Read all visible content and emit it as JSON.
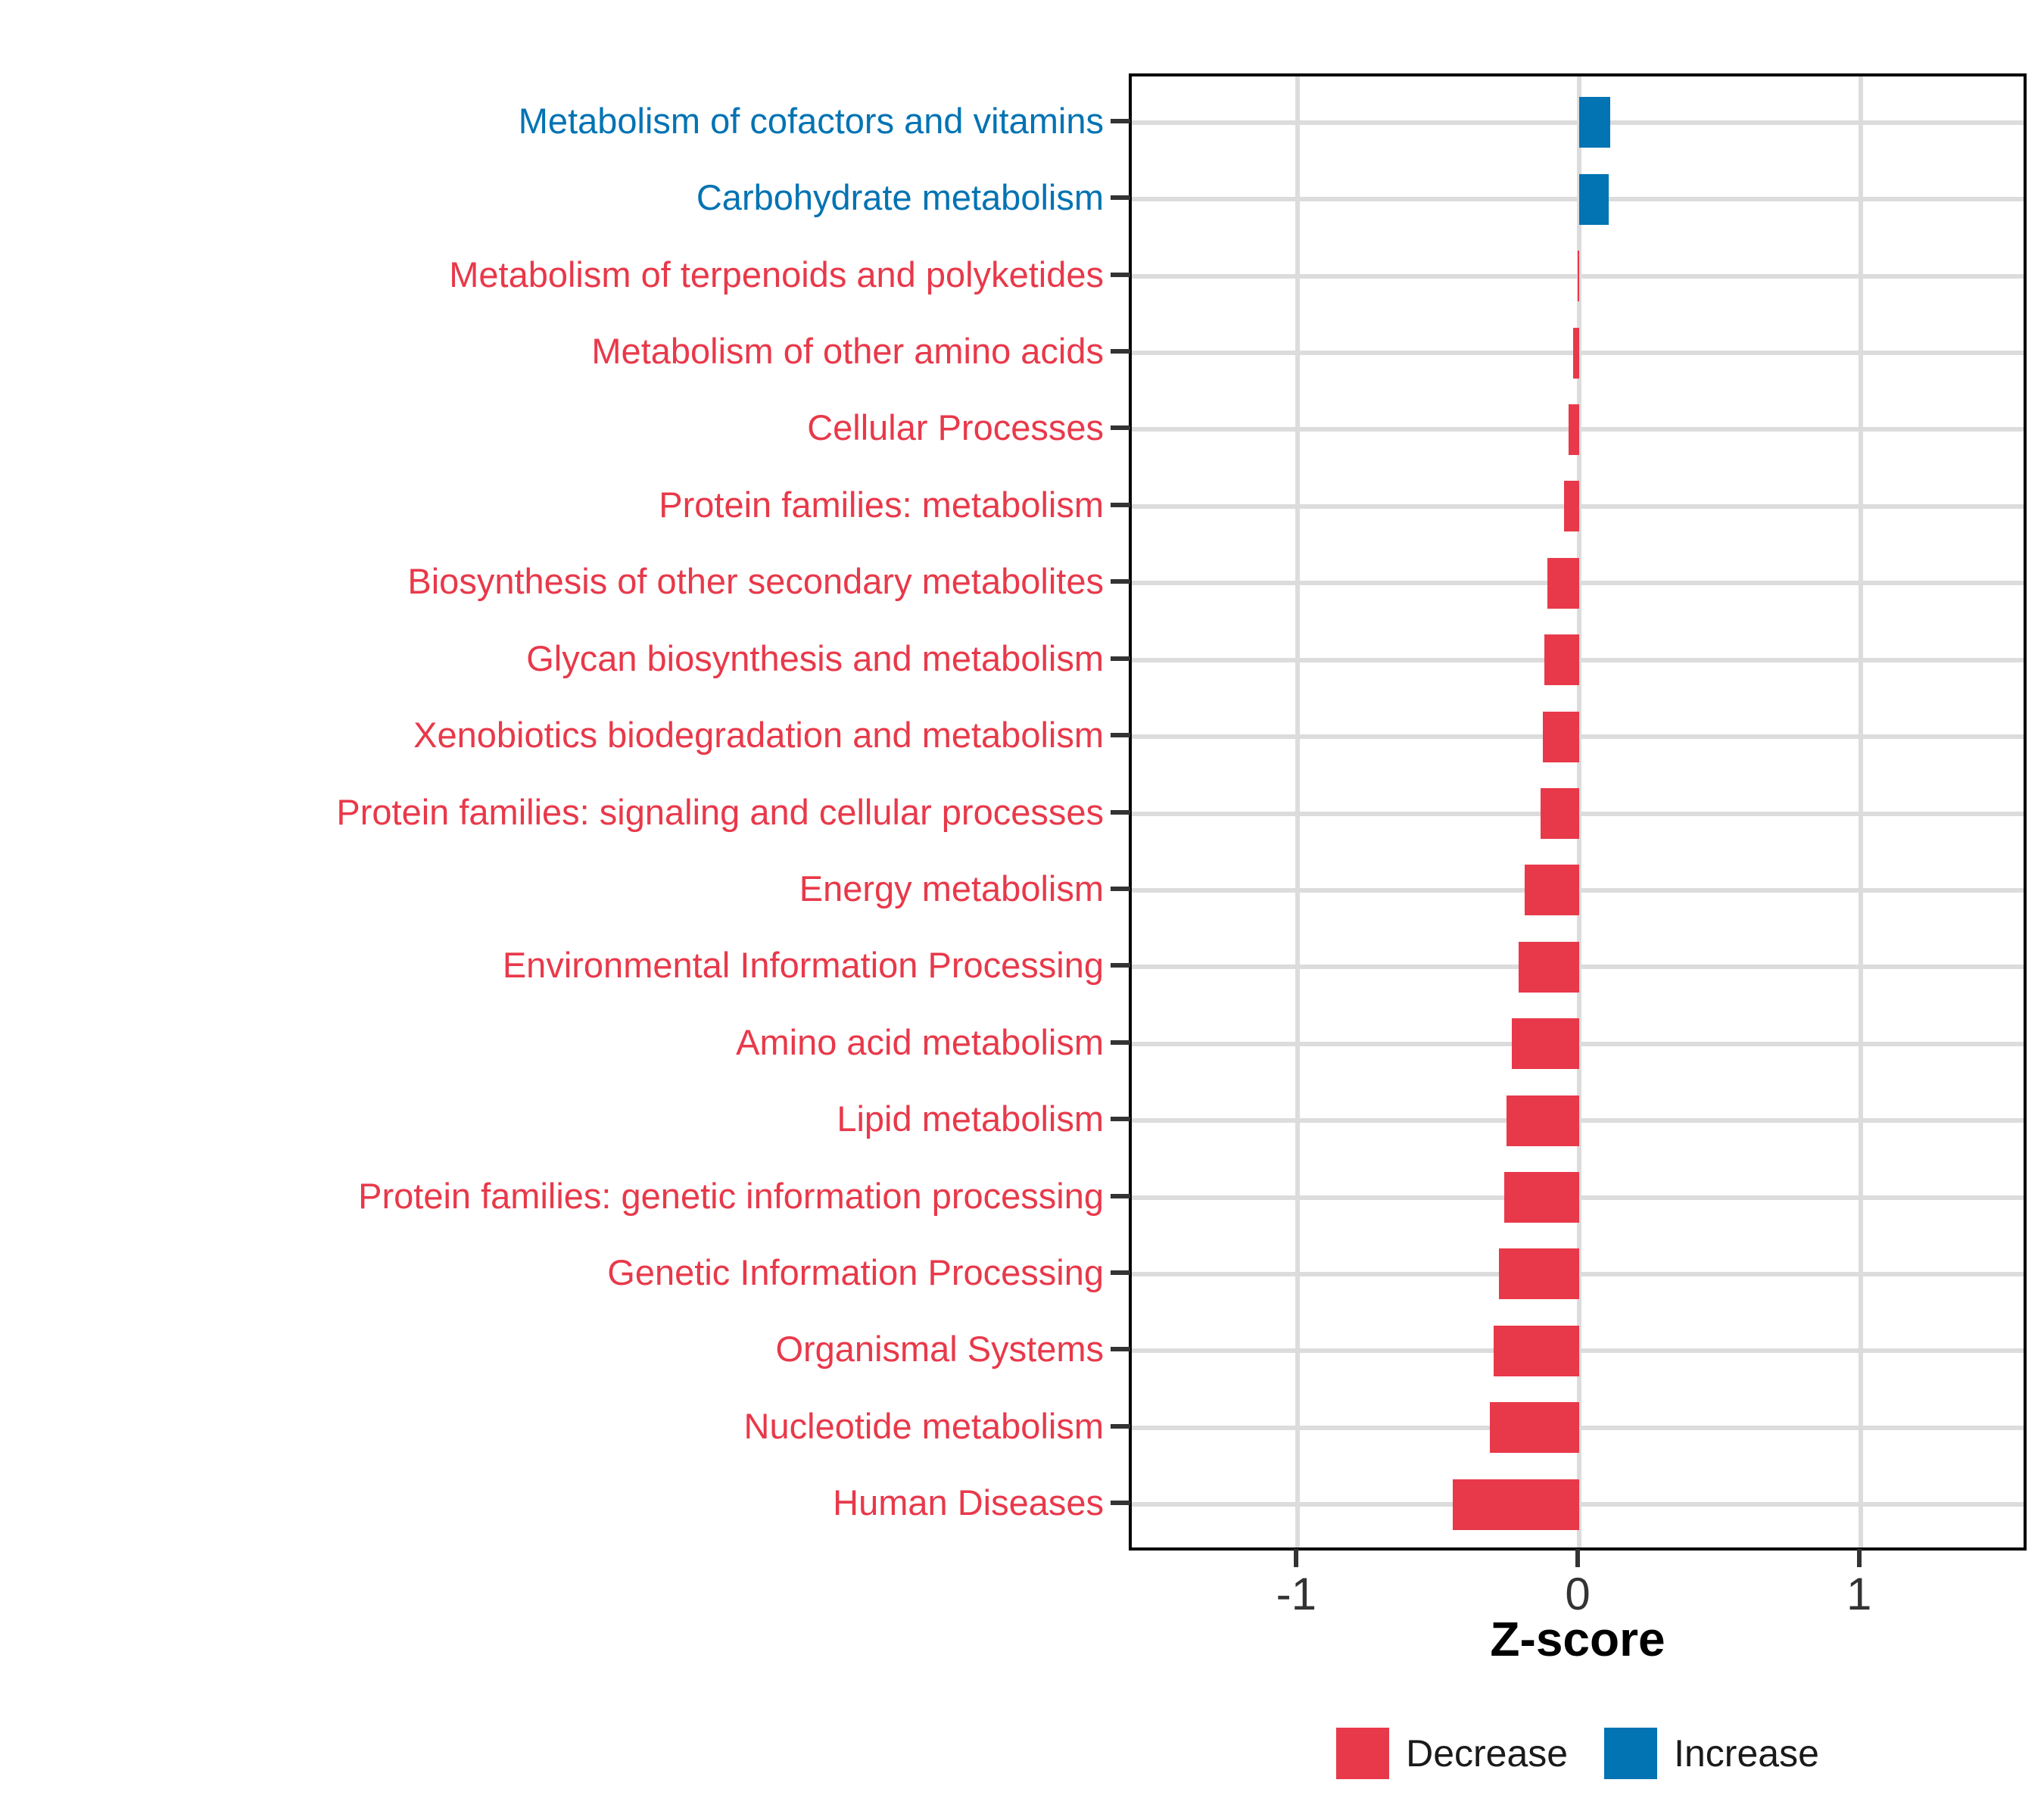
{
  "figure": {
    "background": "#FFFFFF"
  },
  "colors": {
    "increase": "#0273B3",
    "decrease": "#E8394A",
    "gridline": "#DCDCDC",
    "tick_mark": "#333333",
    "axis_text": "#333333",
    "panel_border": "#000000"
  },
  "legend": {
    "items": [
      {
        "label": "Decrease",
        "color": "#E8394A"
      },
      {
        "label": "Increase",
        "color": "#0273B3"
      }
    ]
  },
  "chart_data": {
    "type": "bar",
    "orientation": "horizontal",
    "title": "",
    "xlabel": "Z-score",
    "ylabel": "",
    "xlim": [
      -1.59,
      1.59
    ],
    "x_ticks": [
      -1,
      0,
      1
    ],
    "x_tick_labels": [
      "-1",
      "0",
      "1"
    ],
    "grid": true,
    "legend_position": "bottom",
    "categories": [
      "Metabolism of cofactors and vitamins",
      "Carbohydrate metabolism",
      "Metabolism of terpenoids and polyketides",
      "Metabolism of other amino acids",
      "Cellular Processes",
      "Protein families: metabolism",
      "Biosynthesis of other secondary metabolites",
      "Glycan biosynthesis and metabolism",
      "Xenobiotics biodegradation and metabolism",
      "Protein families: signaling and cellular processes",
      "Energy metabolism",
      "Environmental Information Processing",
      "Amino acid metabolism",
      "Lipid metabolism",
      "Protein families: genetic information processing",
      "Genetic Information Processing",
      "Organismal Systems",
      "Nucleotide metabolism",
      "Human Diseases"
    ],
    "values": [
      0.11,
      0.105,
      -0.005,
      -0.022,
      -0.038,
      -0.053,
      -0.113,
      -0.123,
      -0.13,
      -0.138,
      -0.195,
      -0.215,
      -0.24,
      -0.258,
      -0.266,
      -0.286,
      -0.303,
      -0.317,
      -0.45
    ],
    "directions": [
      "Increase",
      "Increase",
      "Decrease",
      "Decrease",
      "Decrease",
      "Decrease",
      "Decrease",
      "Decrease",
      "Decrease",
      "Decrease",
      "Decrease",
      "Decrease",
      "Decrease",
      "Decrease",
      "Decrease",
      "Decrease",
      "Decrease",
      "Decrease",
      "Decrease"
    ]
  }
}
